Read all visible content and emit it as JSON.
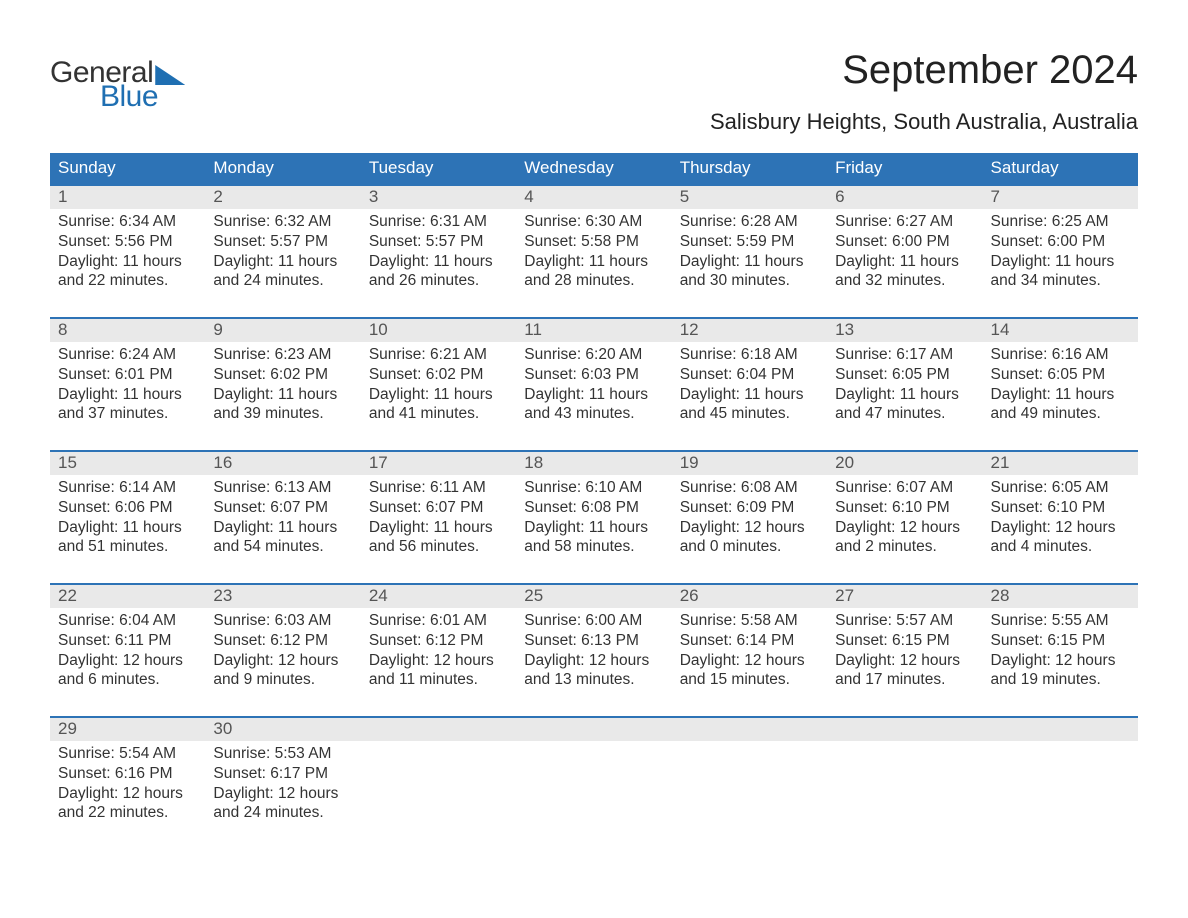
{
  "brand": {
    "word1": "General",
    "word2": "Blue",
    "color_primary": "#1f6fb2"
  },
  "header": {
    "month_title": "September 2024",
    "location": "Salisbury Heights, South Australia, Australia"
  },
  "style": {
    "header_bg": "#2d73b6",
    "header_fg": "#ffffff",
    "date_bg": "#e9e9e9",
    "week_border": "#2d73b6",
    "body_fg": "#333333",
    "page_bg": "#ffffff",
    "title_fontsize": 40,
    "location_fontsize": 22,
    "dow_fontsize": 17,
    "cell_fontsize": 15.5
  },
  "days_of_week": [
    "Sunday",
    "Monday",
    "Tuesday",
    "Wednesday",
    "Thursday",
    "Friday",
    "Saturday"
  ],
  "weeks": [
    [
      {
        "date": "1",
        "sunrise": "Sunrise: 6:34 AM",
        "sunset": "Sunset: 5:56 PM",
        "daylight1": "Daylight: 11 hours",
        "daylight2": "and 22 minutes."
      },
      {
        "date": "2",
        "sunrise": "Sunrise: 6:32 AM",
        "sunset": "Sunset: 5:57 PM",
        "daylight1": "Daylight: 11 hours",
        "daylight2": "and 24 minutes."
      },
      {
        "date": "3",
        "sunrise": "Sunrise: 6:31 AM",
        "sunset": "Sunset: 5:57 PM",
        "daylight1": "Daylight: 11 hours",
        "daylight2": "and 26 minutes."
      },
      {
        "date": "4",
        "sunrise": "Sunrise: 6:30 AM",
        "sunset": "Sunset: 5:58 PM",
        "daylight1": "Daylight: 11 hours",
        "daylight2": "and 28 minutes."
      },
      {
        "date": "5",
        "sunrise": "Sunrise: 6:28 AM",
        "sunset": "Sunset: 5:59 PM",
        "daylight1": "Daylight: 11 hours",
        "daylight2": "and 30 minutes."
      },
      {
        "date": "6",
        "sunrise": "Sunrise: 6:27 AM",
        "sunset": "Sunset: 6:00 PM",
        "daylight1": "Daylight: 11 hours",
        "daylight2": "and 32 minutes."
      },
      {
        "date": "7",
        "sunrise": "Sunrise: 6:25 AM",
        "sunset": "Sunset: 6:00 PM",
        "daylight1": "Daylight: 11 hours",
        "daylight2": "and 34 minutes."
      }
    ],
    [
      {
        "date": "8",
        "sunrise": "Sunrise: 6:24 AM",
        "sunset": "Sunset: 6:01 PM",
        "daylight1": "Daylight: 11 hours",
        "daylight2": "and 37 minutes."
      },
      {
        "date": "9",
        "sunrise": "Sunrise: 6:23 AM",
        "sunset": "Sunset: 6:02 PM",
        "daylight1": "Daylight: 11 hours",
        "daylight2": "and 39 minutes."
      },
      {
        "date": "10",
        "sunrise": "Sunrise: 6:21 AM",
        "sunset": "Sunset: 6:02 PM",
        "daylight1": "Daylight: 11 hours",
        "daylight2": "and 41 minutes."
      },
      {
        "date": "11",
        "sunrise": "Sunrise: 6:20 AM",
        "sunset": "Sunset: 6:03 PM",
        "daylight1": "Daylight: 11 hours",
        "daylight2": "and 43 minutes."
      },
      {
        "date": "12",
        "sunrise": "Sunrise: 6:18 AM",
        "sunset": "Sunset: 6:04 PM",
        "daylight1": "Daylight: 11 hours",
        "daylight2": "and 45 minutes."
      },
      {
        "date": "13",
        "sunrise": "Sunrise: 6:17 AM",
        "sunset": "Sunset: 6:05 PM",
        "daylight1": "Daylight: 11 hours",
        "daylight2": "and 47 minutes."
      },
      {
        "date": "14",
        "sunrise": "Sunrise: 6:16 AM",
        "sunset": "Sunset: 6:05 PM",
        "daylight1": "Daylight: 11 hours",
        "daylight2": "and 49 minutes."
      }
    ],
    [
      {
        "date": "15",
        "sunrise": "Sunrise: 6:14 AM",
        "sunset": "Sunset: 6:06 PM",
        "daylight1": "Daylight: 11 hours",
        "daylight2": "and 51 minutes."
      },
      {
        "date": "16",
        "sunrise": "Sunrise: 6:13 AM",
        "sunset": "Sunset: 6:07 PM",
        "daylight1": "Daylight: 11 hours",
        "daylight2": "and 54 minutes."
      },
      {
        "date": "17",
        "sunrise": "Sunrise: 6:11 AM",
        "sunset": "Sunset: 6:07 PM",
        "daylight1": "Daylight: 11 hours",
        "daylight2": "and 56 minutes."
      },
      {
        "date": "18",
        "sunrise": "Sunrise: 6:10 AM",
        "sunset": "Sunset: 6:08 PM",
        "daylight1": "Daylight: 11 hours",
        "daylight2": "and 58 minutes."
      },
      {
        "date": "19",
        "sunrise": "Sunrise: 6:08 AM",
        "sunset": "Sunset: 6:09 PM",
        "daylight1": "Daylight: 12 hours",
        "daylight2": "and 0 minutes."
      },
      {
        "date": "20",
        "sunrise": "Sunrise: 6:07 AM",
        "sunset": "Sunset: 6:10 PM",
        "daylight1": "Daylight: 12 hours",
        "daylight2": "and 2 minutes."
      },
      {
        "date": "21",
        "sunrise": "Sunrise: 6:05 AM",
        "sunset": "Sunset: 6:10 PM",
        "daylight1": "Daylight: 12 hours",
        "daylight2": "and 4 minutes."
      }
    ],
    [
      {
        "date": "22",
        "sunrise": "Sunrise: 6:04 AM",
        "sunset": "Sunset: 6:11 PM",
        "daylight1": "Daylight: 12 hours",
        "daylight2": "and 6 minutes."
      },
      {
        "date": "23",
        "sunrise": "Sunrise: 6:03 AM",
        "sunset": "Sunset: 6:12 PM",
        "daylight1": "Daylight: 12 hours",
        "daylight2": "and 9 minutes."
      },
      {
        "date": "24",
        "sunrise": "Sunrise: 6:01 AM",
        "sunset": "Sunset: 6:12 PM",
        "daylight1": "Daylight: 12 hours",
        "daylight2": "and 11 minutes."
      },
      {
        "date": "25",
        "sunrise": "Sunrise: 6:00 AM",
        "sunset": "Sunset: 6:13 PM",
        "daylight1": "Daylight: 12 hours",
        "daylight2": "and 13 minutes."
      },
      {
        "date": "26",
        "sunrise": "Sunrise: 5:58 AM",
        "sunset": "Sunset: 6:14 PM",
        "daylight1": "Daylight: 12 hours",
        "daylight2": "and 15 minutes."
      },
      {
        "date": "27",
        "sunrise": "Sunrise: 5:57 AM",
        "sunset": "Sunset: 6:15 PM",
        "daylight1": "Daylight: 12 hours",
        "daylight2": "and 17 minutes."
      },
      {
        "date": "28",
        "sunrise": "Sunrise: 5:55 AM",
        "sunset": "Sunset: 6:15 PM",
        "daylight1": "Daylight: 12 hours",
        "daylight2": "and 19 minutes."
      }
    ],
    [
      {
        "date": "29",
        "sunrise": "Sunrise: 5:54 AM",
        "sunset": "Sunset: 6:16 PM",
        "daylight1": "Daylight: 12 hours",
        "daylight2": "and 22 minutes."
      },
      {
        "date": "30",
        "sunrise": "Sunrise: 5:53 AM",
        "sunset": "Sunset: 6:17 PM",
        "daylight1": "Daylight: 12 hours",
        "daylight2": "and 24 minutes."
      },
      {
        "date": "",
        "sunrise": "",
        "sunset": "",
        "daylight1": "",
        "daylight2": ""
      },
      {
        "date": "",
        "sunrise": "",
        "sunset": "",
        "daylight1": "",
        "daylight2": ""
      },
      {
        "date": "",
        "sunrise": "",
        "sunset": "",
        "daylight1": "",
        "daylight2": ""
      },
      {
        "date": "",
        "sunrise": "",
        "sunset": "",
        "daylight1": "",
        "daylight2": ""
      },
      {
        "date": "",
        "sunrise": "",
        "sunset": "",
        "daylight1": "",
        "daylight2": ""
      }
    ]
  ]
}
